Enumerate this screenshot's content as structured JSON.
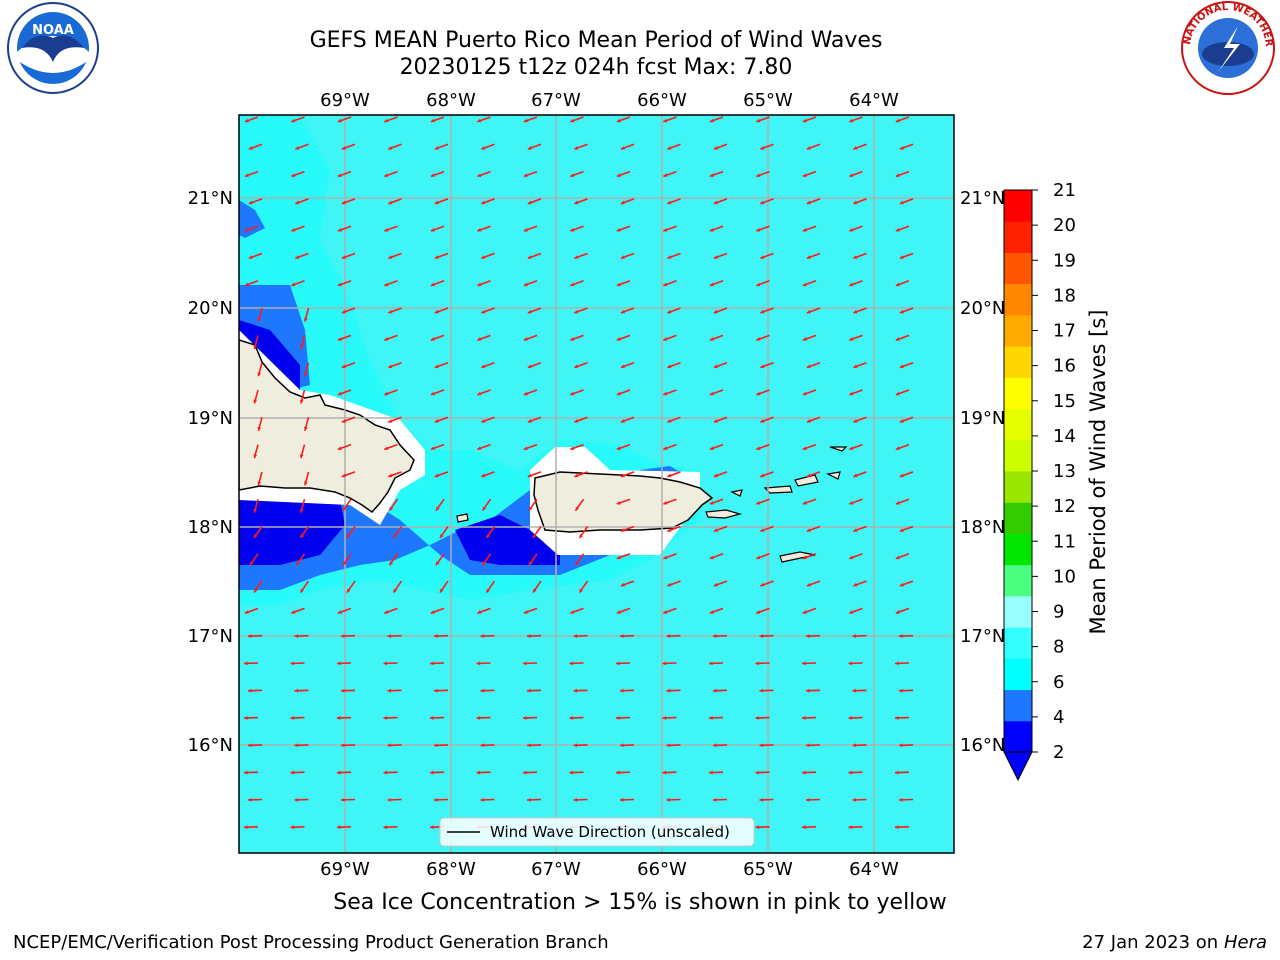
{
  "title_line1": "GEFS MEAN Puerto Rico Mean Period of Wind Waves",
  "title_line2": "20230125 t12z 024h fcst   Max: 7.80",
  "subtitle": "Sea Ice Concentration > 15% is shown in pink to yellow",
  "footer_left": "NCEP/EMC/Verification Post Processing Product Generation Branch",
  "footer_right_date": "27 Jan 2023 on ",
  "footer_right_host": "Hera",
  "legend_label": "Wind Wave Direction (unscaled)",
  "colorbar_label": "Mean Period of Wind Waves [s]",
  "lon_ticks": [
    "69°W",
    "68°W",
    "67°W",
    "66°W",
    "65°W",
    "64°W"
  ],
  "lat_ticks": [
    "21°N",
    "20°N",
    "19°N",
    "18°N",
    "17°N",
    "16°N"
  ],
  "colorbar_ticks": [
    "21",
    "20",
    "19",
    "18",
    "17",
    "16",
    "15",
    "14",
    "13",
    "12",
    "11",
    "10",
    "9",
    "8",
    "6",
    "4",
    "2"
  ],
  "colorbar_colors": [
    "#0000ff",
    "#1e78ff",
    "#00ffff",
    "#33ffff",
    "#99ffff",
    "#4dff80",
    "#00e600",
    "#33cc00",
    "#99e600",
    "#ccff00",
    "#e6ff00",
    "#ffff00",
    "#ffd700",
    "#ffaa00",
    "#ff8800",
    "#ff5500",
    "#ff2200",
    "#ff0000"
  ],
  "colors": {
    "ocean": "#3ff5f5",
    "land": "#efedde",
    "blue_dark": "#0000ee",
    "blue_mid": "#1e78ff",
    "arrow": "#ff1a1a"
  },
  "logos": {
    "left": "NOAA",
    "right": "NATIONAL WEATHER SERVICE"
  }
}
